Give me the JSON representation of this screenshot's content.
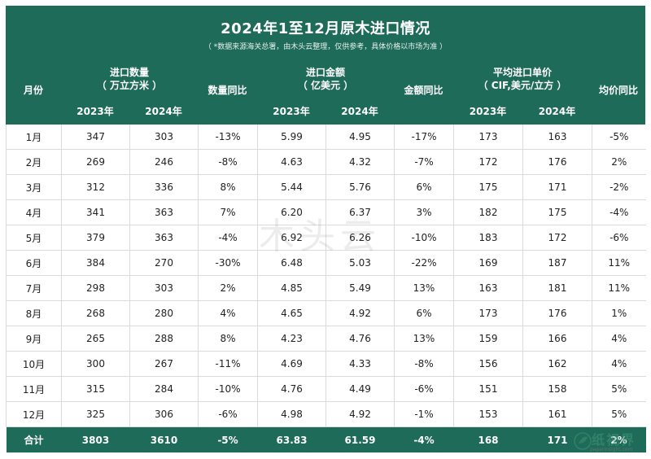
{
  "title": "2024年1至12月原木进口情况",
  "subtitle": "（ *数据来源海关总署，由木头云整理，仅供参考，具体价格以市场为准 ）",
  "headers": {
    "month": "月份",
    "volume_group_line1": "进口数量",
    "volume_group_line2": "（ 万立方米 ）",
    "volume_2023": "2023年",
    "volume_2024": "2024年",
    "volume_yoy": "数量同比",
    "amount_group_line1": "进口金额",
    "amount_group_line2": "（ 亿美元 ）",
    "amount_2023": "2023年",
    "amount_2024": "2024年",
    "amount_yoy": "金额同比",
    "price_group_line1": "平均进口单价",
    "price_group_line2": "（ CIF,美元/立方 ）",
    "price_2023": "2023年",
    "price_2024": "2024年",
    "price_yoy": "均价同比"
  },
  "rows": [
    {
      "month": "1月",
      "v23": "347",
      "v24": "303",
      "vy": "-13%",
      "a23": "5.99",
      "a24": "4.95",
      "ay": "-17%",
      "p23": "173",
      "p24": "163",
      "py": "-5%"
    },
    {
      "month": "2月",
      "v23": "269",
      "v24": "246",
      "vy": "-8%",
      "a23": "4.63",
      "a24": "4.32",
      "ay": "-7%",
      "p23": "172",
      "p24": "176",
      "py": "2%"
    },
    {
      "month": "3月",
      "v23": "312",
      "v24": "336",
      "vy": "8%",
      "a23": "5.44",
      "a24": "5.76",
      "ay": "6%",
      "p23": "175",
      "p24": "171",
      "py": "-2%"
    },
    {
      "month": "4月",
      "v23": "341",
      "v24": "363",
      "vy": "7%",
      "a23": "6.20",
      "a24": "6.37",
      "ay": "3%",
      "p23": "182",
      "p24": "175",
      "py": "-4%"
    },
    {
      "month": "5月",
      "v23": "379",
      "v24": "363",
      "vy": "-4%",
      "a23": "6.92",
      "a24": "6.26",
      "ay": "-10%",
      "p23": "183",
      "p24": "172",
      "py": "-6%"
    },
    {
      "month": "6月",
      "v23": "384",
      "v24": "270",
      "vy": "-30%",
      "a23": "6.48",
      "a24": "5.03",
      "ay": "-22%",
      "p23": "169",
      "p24": "187",
      "py": "11%"
    },
    {
      "month": "7月",
      "v23": "298",
      "v24": "303",
      "vy": "2%",
      "a23": "4.85",
      "a24": "5.49",
      "ay": "13%",
      "p23": "163",
      "p24": "181",
      "py": "11%"
    },
    {
      "month": "8月",
      "v23": "268",
      "v24": "280",
      "vy": "4%",
      "a23": "4.65",
      "a24": "4.92",
      "ay": "6%",
      "p23": "173",
      "p24": "176",
      "py": "1%"
    },
    {
      "month": "9月",
      "v23": "265",
      "v24": "288",
      "vy": "8%",
      "a23": "4.23",
      "a24": "4.76",
      "ay": "13%",
      "p23": "159",
      "p24": "166",
      "py": "4%"
    },
    {
      "month": "10月",
      "v23": "300",
      "v24": "267",
      "vy": "-11%",
      "a23": "4.69",
      "a24": "4.33",
      "ay": "-8%",
      "p23": "156",
      "p24": "162",
      "py": "4%"
    },
    {
      "month": "11月",
      "v23": "315",
      "v24": "284",
      "vy": "-10%",
      "a23": "4.76",
      "a24": "4.49",
      "ay": "-6%",
      "p23": "151",
      "p24": "158",
      "py": "5%"
    },
    {
      "month": "12月",
      "v23": "325",
      "v24": "306",
      "vy": "-6%",
      "a23": "4.98",
      "a24": "4.92",
      "ay": "-1%",
      "p23": "153",
      "p24": "161",
      "py": "5%"
    }
  ],
  "total": {
    "label": "合计",
    "v23": "3803",
    "v24": "3610",
    "vy": "-5%",
    "a23": "63.83",
    "a24": "61.59",
    "ay": "-4%",
    "p23": "168",
    "p24": "171",
    "py": "2%"
  },
  "colors": {
    "header_bg": "#1f6b5a",
    "negative": "#1f6b5a",
    "positive": "#e0262b"
  },
  "watermark": "木头云",
  "logo": {
    "text": "纸视界",
    "url": "paperinsight.com"
  }
}
